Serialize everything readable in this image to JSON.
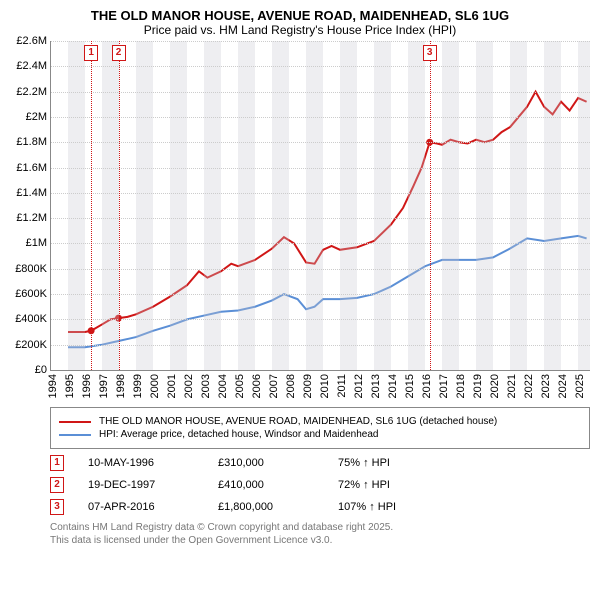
{
  "title": {
    "line1": "THE OLD MANOR HOUSE, AVENUE ROAD, MAIDENHEAD, SL6 1UG",
    "line2": "Price paid vs. HM Land Registry's House Price Index (HPI)"
  },
  "chart": {
    "type": "line",
    "x_axis": {
      "min": 1994,
      "max": 2025.7,
      "ticks": [
        1994,
        1995,
        1996,
        1997,
        1998,
        1999,
        2000,
        2001,
        2002,
        2003,
        2004,
        2005,
        2006,
        2007,
        2008,
        2009,
        2010,
        2011,
        2012,
        2013,
        2014,
        2015,
        2016,
        2017,
        2018,
        2019,
        2020,
        2021,
        2022,
        2023,
        2024,
        2025
      ]
    },
    "y_axis": {
      "min": 0,
      "max": 2600000,
      "step": 200000,
      "labels": [
        "£0",
        "£200K",
        "£400K",
        "£600K",
        "£800K",
        "£1M",
        "£1.2M",
        "£1.4M",
        "£1.6M",
        "£1.8M",
        "£2M",
        "£2.2M",
        "£2.4M",
        "£2.6M"
      ]
    },
    "grid_color": "#cccccc",
    "background": "#ffffff",
    "shade_bands": [
      {
        "from": 1995,
        "to": 1996
      },
      {
        "from": 1997,
        "to": 1998
      },
      {
        "from": 1999,
        "to": 2000
      },
      {
        "from": 2001,
        "to": 2002
      },
      {
        "from": 2003,
        "to": 2004
      },
      {
        "from": 2005,
        "to": 2006
      },
      {
        "from": 2007,
        "to": 2008
      },
      {
        "from": 2009,
        "to": 2010
      },
      {
        "from": 2011,
        "to": 2012
      },
      {
        "from": 2013,
        "to": 2014
      },
      {
        "from": 2015,
        "to": 2016
      },
      {
        "from": 2017,
        "to": 2018
      },
      {
        "from": 2019,
        "to": 2020
      },
      {
        "from": 2021,
        "to": 2022
      },
      {
        "from": 2023,
        "to": 2024
      },
      {
        "from": 2025,
        "to": 2025.7
      }
    ],
    "series": [
      {
        "name": "price_paid",
        "color": "#d01616",
        "line_width": 2,
        "points": [
          [
            1995.0,
            300000
          ],
          [
            1996.0,
            300000
          ],
          [
            1996.36,
            310000
          ],
          [
            1997.0,
            360000
          ],
          [
            1997.5,
            400000
          ],
          [
            1997.97,
            410000
          ],
          [
            1998.5,
            420000
          ],
          [
            1999.0,
            440000
          ],
          [
            2000.0,
            500000
          ],
          [
            2001.0,
            580000
          ],
          [
            2002.0,
            670000
          ],
          [
            2002.7,
            780000
          ],
          [
            2003.2,
            730000
          ],
          [
            2004.0,
            780000
          ],
          [
            2004.6,
            840000
          ],
          [
            2005.0,
            820000
          ],
          [
            2006.0,
            870000
          ],
          [
            2007.0,
            960000
          ],
          [
            2007.7,
            1050000
          ],
          [
            2008.3,
            1000000
          ],
          [
            2009.0,
            850000
          ],
          [
            2009.5,
            840000
          ],
          [
            2010.0,
            950000
          ],
          [
            2010.5,
            980000
          ],
          [
            2011.0,
            950000
          ],
          [
            2012.0,
            970000
          ],
          [
            2013.0,
            1020000
          ],
          [
            2014.0,
            1150000
          ],
          [
            2014.7,
            1280000
          ],
          [
            2015.3,
            1450000
          ],
          [
            2015.8,
            1600000
          ],
          [
            2016.27,
            1800000
          ],
          [
            2016.7,
            1790000
          ],
          [
            2017.0,
            1780000
          ],
          [
            2017.5,
            1820000
          ],
          [
            2018.0,
            1800000
          ],
          [
            2018.5,
            1790000
          ],
          [
            2019.0,
            1820000
          ],
          [
            2019.5,
            1800000
          ],
          [
            2020.0,
            1820000
          ],
          [
            2020.5,
            1880000
          ],
          [
            2021.0,
            1920000
          ],
          [
            2021.5,
            2000000
          ],
          [
            2022.0,
            2080000
          ],
          [
            2022.5,
            2200000
          ],
          [
            2023.0,
            2080000
          ],
          [
            2023.5,
            2020000
          ],
          [
            2024.0,
            2120000
          ],
          [
            2024.5,
            2050000
          ],
          [
            2025.0,
            2150000
          ],
          [
            2025.5,
            2120000
          ]
        ],
        "dots": [
          [
            1996.36,
            310000
          ],
          [
            1997.97,
            410000
          ],
          [
            2016.27,
            1800000
          ]
        ]
      },
      {
        "name": "hpi",
        "color": "#5b8fd6",
        "line_width": 2,
        "points": [
          [
            1995.0,
            180000
          ],
          [
            1996.0,
            180000
          ],
          [
            1997.0,
            200000
          ],
          [
            1998.0,
            230000
          ],
          [
            1999.0,
            260000
          ],
          [
            2000.0,
            310000
          ],
          [
            2001.0,
            350000
          ],
          [
            2002.0,
            400000
          ],
          [
            2003.0,
            430000
          ],
          [
            2004.0,
            460000
          ],
          [
            2005.0,
            470000
          ],
          [
            2006.0,
            500000
          ],
          [
            2007.0,
            550000
          ],
          [
            2007.7,
            600000
          ],
          [
            2008.5,
            560000
          ],
          [
            2009.0,
            480000
          ],
          [
            2009.5,
            500000
          ],
          [
            2010.0,
            560000
          ],
          [
            2011.0,
            560000
          ],
          [
            2012.0,
            570000
          ],
          [
            2013.0,
            600000
          ],
          [
            2014.0,
            660000
          ],
          [
            2015.0,
            740000
          ],
          [
            2016.0,
            820000
          ],
          [
            2017.0,
            870000
          ],
          [
            2018.0,
            870000
          ],
          [
            2019.0,
            870000
          ],
          [
            2020.0,
            890000
          ],
          [
            2021.0,
            960000
          ],
          [
            2022.0,
            1040000
          ],
          [
            2023.0,
            1020000
          ],
          [
            2024.0,
            1040000
          ],
          [
            2025.0,
            1060000
          ],
          [
            2025.5,
            1040000
          ]
        ]
      }
    ],
    "markers": [
      {
        "n": "1",
        "x": 1996.36,
        "color": "#d01616"
      },
      {
        "n": "2",
        "x": 1997.97,
        "color": "#d01616"
      },
      {
        "n": "3",
        "x": 2016.27,
        "color": "#d01616"
      }
    ]
  },
  "legend": {
    "items": [
      {
        "color": "#d01616",
        "label": "THE OLD MANOR HOUSE, AVENUE ROAD, MAIDENHEAD, SL6 1UG (detached house)"
      },
      {
        "color": "#5b8fd6",
        "label": "HPI: Average price, detached house, Windsor and Maidenhead"
      }
    ]
  },
  "transactions": [
    {
      "n": "1",
      "color": "#d01616",
      "date": "10-MAY-1996",
      "price": "£310,000",
      "hpi": "75% ↑ HPI"
    },
    {
      "n": "2",
      "color": "#d01616",
      "date": "19-DEC-1997",
      "price": "£410,000",
      "hpi": "72% ↑ HPI"
    },
    {
      "n": "3",
      "color": "#d01616",
      "date": "07-APR-2016",
      "price": "£1,800,000",
      "hpi": "107% ↑ HPI"
    }
  ],
  "footer": {
    "line1": "Contains HM Land Registry data © Crown copyright and database right 2025.",
    "line2": "This data is licensed under the Open Government Licence v3.0."
  }
}
